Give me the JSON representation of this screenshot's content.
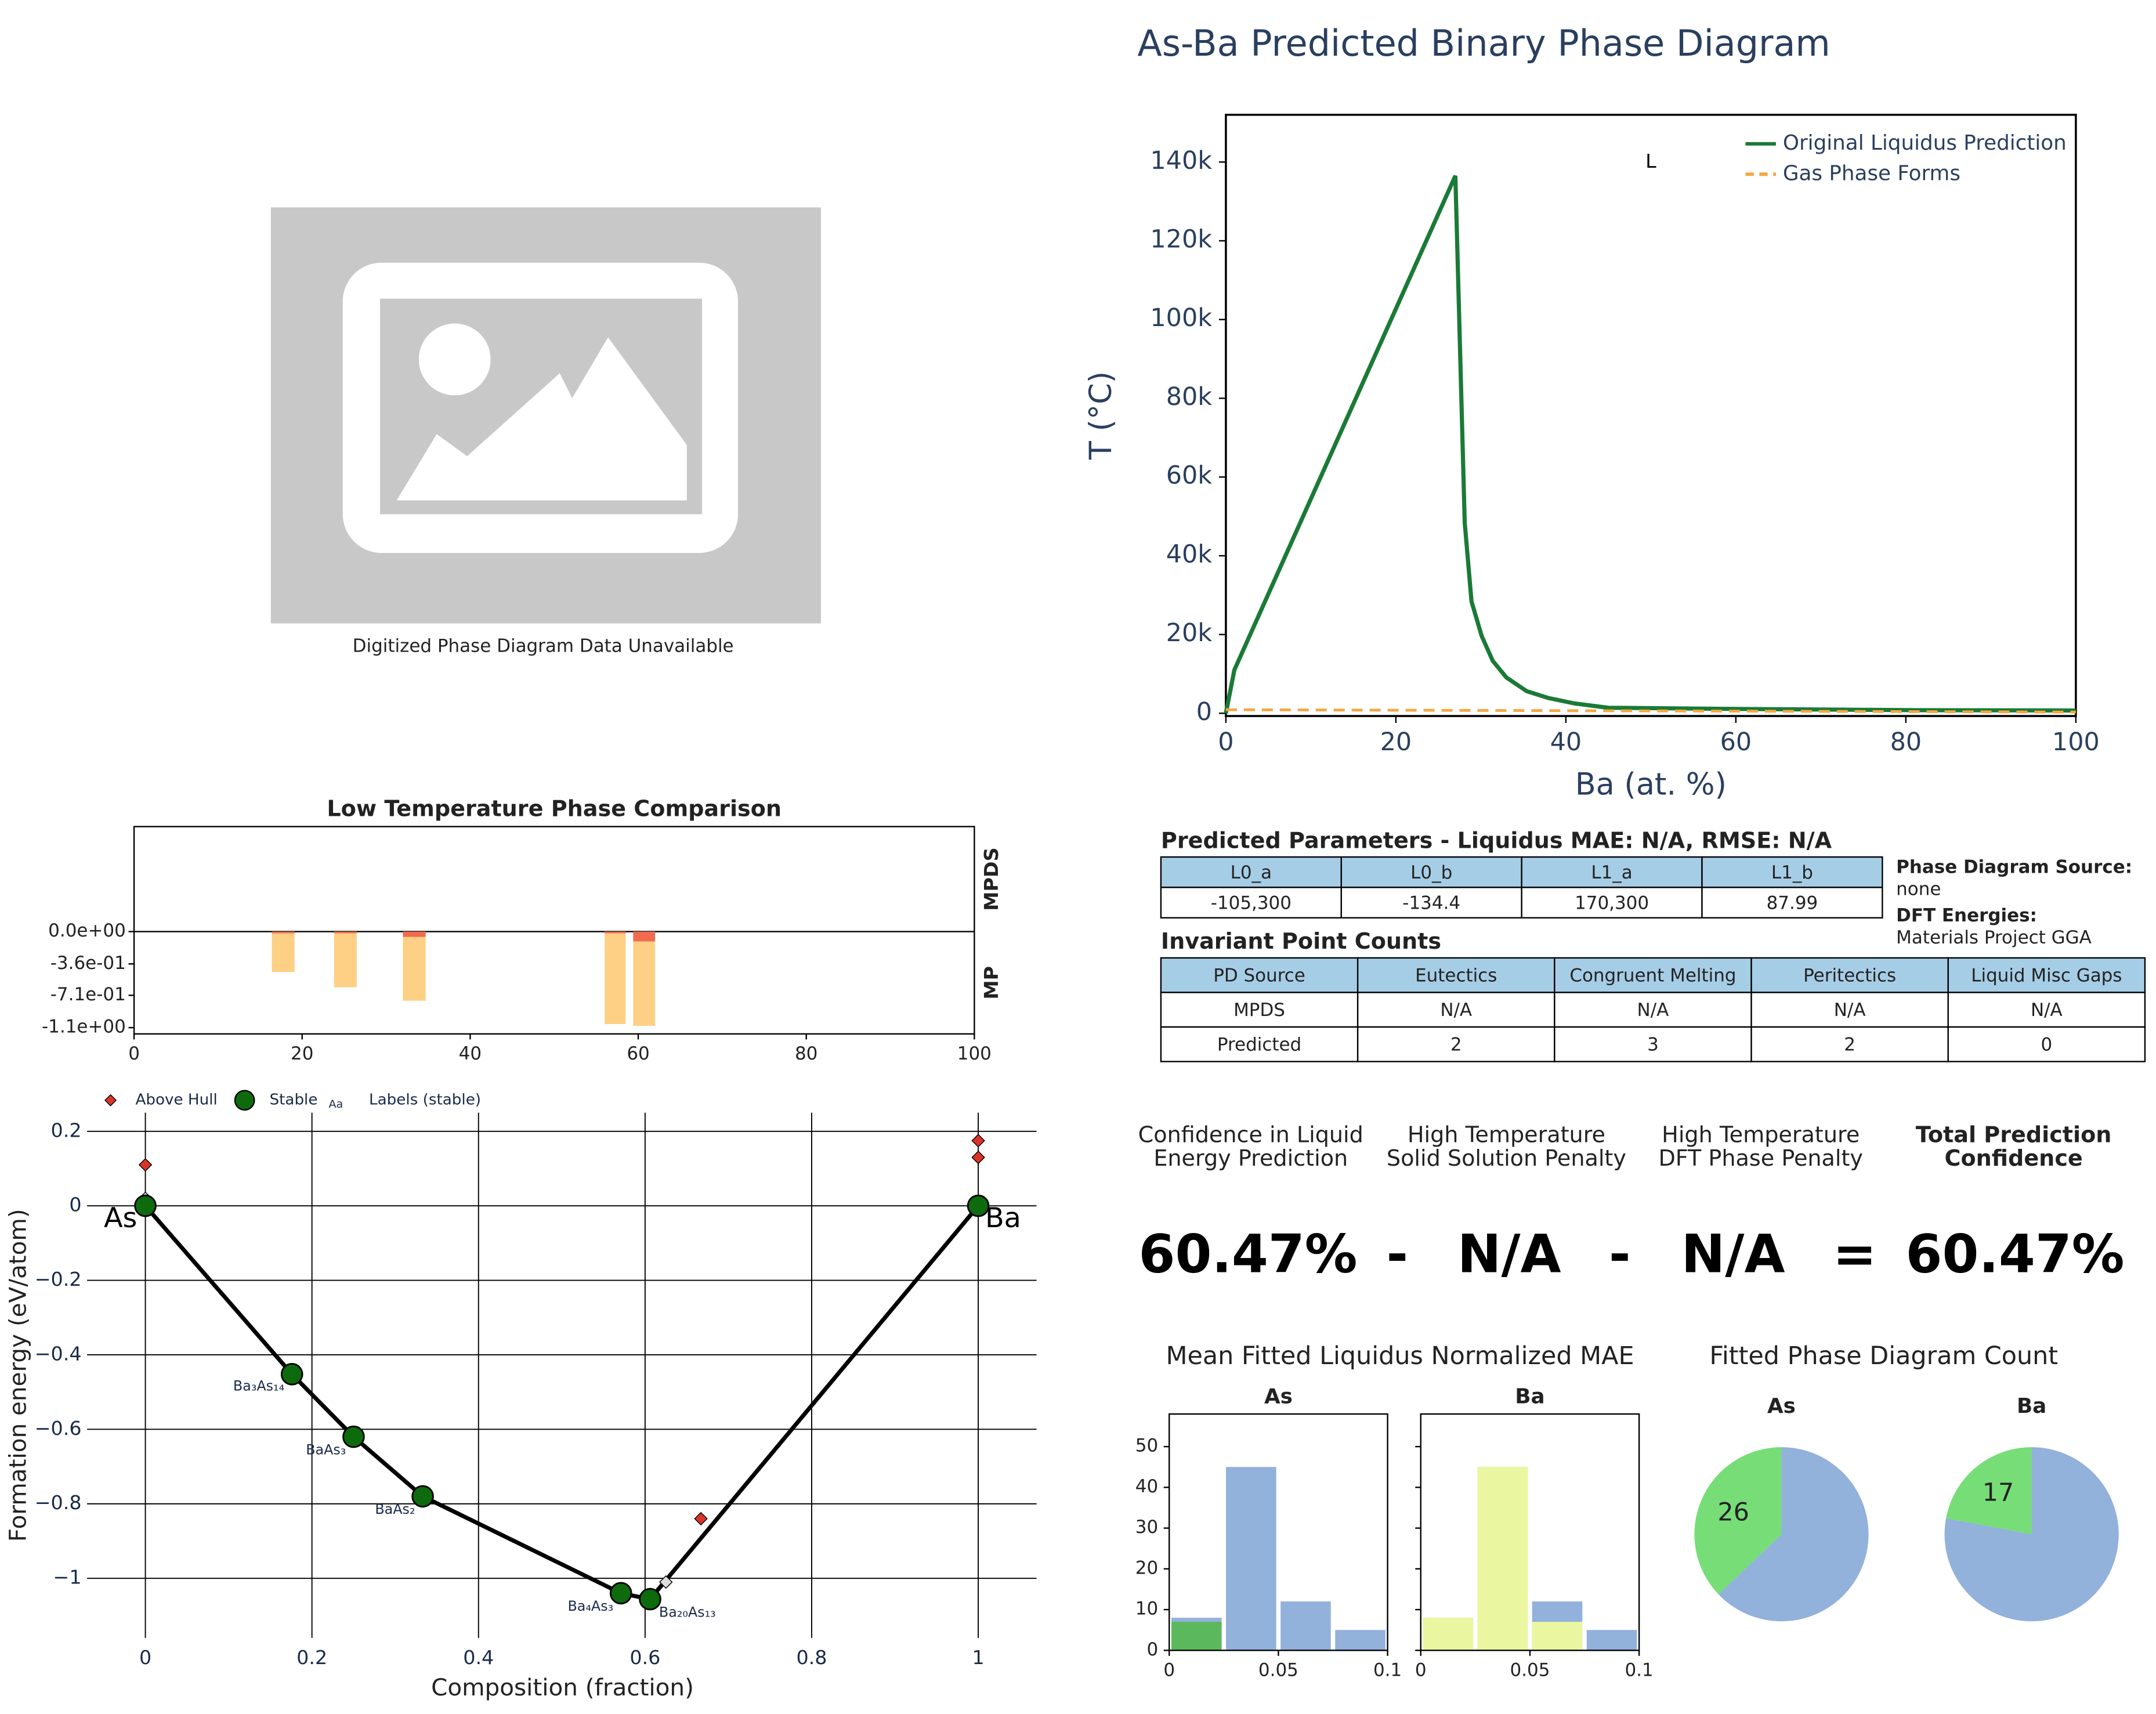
{
  "placeholder": {
    "caption": "Digitized Phase Diagram Data Unavailable"
  },
  "chart_data": [
    {
      "type": "line",
      "title": "As-Ba Predicted Binary Phase Diagram",
      "xlabel": "Ba (at. %)",
      "ylabel": "T (°C)",
      "xlim": [
        0,
        100
      ],
      "ylim": [
        -700,
        152000
      ],
      "xticks": [
        0,
        20,
        40,
        60,
        80,
        100
      ],
      "yticks": [
        0,
        {
          "value": 20000,
          "label": "20k"
        },
        {
          "value": 40000,
          "label": "40k"
        },
        {
          "value": 60000,
          "label": "60k"
        },
        {
          "value": 80000,
          "label": "80k"
        },
        {
          "value": 100000,
          "label": "100k"
        },
        {
          "value": 120000,
          "label": "120k"
        },
        {
          "value": 140000,
          "label": "140k"
        }
      ],
      "legend": "upper right",
      "annotations": [
        {
          "text": "L",
          "x": 50,
          "y": 140000
        }
      ],
      "series": [
        {
          "name": "Original Liquidus Prediction",
          "color": "#1a7a36",
          "dash": "solid",
          "x": [
            0,
            1,
            27,
            28.1,
            28.9,
            30.1,
            31.4,
            33,
            35.4,
            37.9,
            41,
            45,
            60,
            80,
            100
          ],
          "values": [
            0,
            11000,
            136500,
            48400,
            28400,
            19600,
            13300,
            9100,
            5600,
            3900,
            2500,
            1400,
            1100,
            800,
            700
          ]
        },
        {
          "name": "Gas Phase Forms",
          "color": "#f4a742",
          "dash": "dashed",
          "x": [
            0,
            100
          ],
          "values": [
            900,
            300
          ]
        }
      ]
    },
    {
      "type": "bar",
      "title": "Low Temperature Phase Comparison",
      "xlim": [
        0,
        100
      ],
      "ylim": [
        -1.14,
        1.17
      ],
      "xticks": [
        0,
        20,
        40,
        60,
        80,
        100
      ],
      "yticks": [
        {
          "value": 0,
          "label": "0.0e+00"
        },
        {
          "value": -0.36,
          "label": "-3.6e-01"
        },
        {
          "value": -0.71,
          "label": "-7.1e-01"
        },
        {
          "value": -1.07,
          "label": "-1.1e+00"
        }
      ],
      "row_labels": [
        "MPDS",
        "MP"
      ],
      "stacked": true,
      "bar_edges": [
        [
          16.4,
          19.1
        ],
        [
          23.8,
          26.5
        ],
        [
          32,
          34.7
        ],
        [
          56,
          58.5
        ],
        [
          59.4,
          62
        ]
      ],
      "series": [
        {
          "color": "#f26b4f",
          "values": [
            -0.02,
            -0.02,
            -0.06,
            -0.02,
            -0.11
          ]
        },
        {
          "color": "#fdd085",
          "values": [
            -0.43,
            -0.6,
            -0.71,
            -1.01,
            -0.94
          ]
        }
      ]
    },
    {
      "type": "scatter",
      "xlabel": "Composition (fraction)",
      "ylabel": "Formation energy (eV/atom)",
      "xlim": [
        -0.07,
        1.07
      ],
      "ylim": [
        -1.16,
        0.25
      ],
      "grid": true,
      "xticks": [
        0,
        0.2,
        0.4,
        0.6,
        0.8,
        1
      ],
      "yticks": [
        0.2,
        0,
        {
          "value": -0.2,
          "label": "−0.2"
        },
        {
          "value": -0.4,
          "label": "−0.4"
        },
        {
          "value": -0.6,
          "label": "−0.6"
        },
        {
          "value": -0.8,
          "label": "−0.8"
        },
        {
          "value": -1,
          "label": "−1"
        }
      ],
      "label_legend": {
        "icon": "Aa",
        "name": "Labels (stable)"
      },
      "series": [
        {
          "color": "#dddddd",
          "marker": "diamond",
          "x": [
            0,
            0.625,
            1
          ],
          "values": [
            0.02,
            -1.01,
            0.01
          ]
        },
        {
          "name": "Above Hull",
          "color": "#d9342b",
          "marker": "diamond",
          "x": [
            0,
            1,
            1,
            0.667
          ],
          "values": [
            0.11,
            0.175,
            0.13,
            -0.84
          ]
        },
        {
          "name": "Stable",
          "color": "#0d6b0d",
          "marker": "circle",
          "line": true,
          "x": [
            0,
            0.176,
            0.25,
            0.333,
            0.571,
            0.606,
            1
          ],
          "values": [
            0,
            -0.452,
            -0.62,
            -0.78,
            -1.04,
            -1.056,
            0
          ],
          "labels": [
            "As",
            "Ba₃As₁₄",
            "BaAs₃",
            "BaAs₂",
            "Ba₄As₃",
            "Ba₂₀As₁₃",
            "Ba"
          ]
        }
      ]
    },
    {
      "type": "histogram",
      "title": "Mean Fitted Liquidus Normalized MAE",
      "bins": [
        0,
        0.025,
        0.05,
        0.075,
        0.1
      ],
      "xlim": [
        0,
        0.1
      ],
      "ylim": [
        0,
        58
      ],
      "xticks": [
        0,
        0.05,
        0.1
      ],
      "yticks": [
        0,
        10,
        20,
        30,
        40,
        50
      ],
      "sharey": true,
      "subplots": [
        {
          "title": "As",
          "series": [
            {
              "color": "#92b1db",
              "values": [
                8,
                45,
                12,
                5
              ]
            },
            {
              "color": "#5cb85c",
              "values": [
                7,
                0,
                0,
                0
              ]
            }
          ]
        },
        {
          "title": "Ba",
          "series": [
            {
              "color": "#92b1db",
              "values": [
                8,
                45,
                12,
                5
              ]
            },
            {
              "color": "#eaf7a0",
              "values": [
                8,
                45,
                7,
                0
              ]
            }
          ]
        }
      ]
    },
    {
      "type": "pie",
      "title": "Fitted Phase Diagram Count",
      "colors": [
        "#77dd77",
        "#92b1db"
      ],
      "start": "top",
      "direction": "counterclockwise",
      "pies": [
        {
          "title": "As",
          "values": [
            26,
            44
          ],
          "value_labels": [
            "26",
            null
          ]
        },
        {
          "title": "Ba",
          "values": [
            17,
            60
          ],
          "value_labels": [
            "17",
            null
          ]
        }
      ]
    }
  ],
  "parameters": {
    "title": "Predicted Parameters - Liquidus MAE: N/A, RMSE: N/A",
    "headers": [
      "L0_a",
      "L0_b",
      "L1_a",
      "L1_b"
    ],
    "rows": [
      [
        "-105,300",
        "-134.4",
        "170,300",
        "87.99"
      ]
    ]
  },
  "source_info": [
    {
      "label": "Phase Diagram Source:",
      "value": "none"
    },
    {
      "label": "DFT Energies:",
      "value": "Materials Project GGA"
    }
  ],
  "invariants": {
    "title": "Invariant Point Counts",
    "headers": [
      "PD Source",
      "Eutectics",
      "Congruent Melting",
      "Peritectics",
      "Liquid Misc Gaps"
    ],
    "rows": [
      [
        "MPDS",
        "N/A",
        "N/A",
        "N/A",
        "N/A"
      ],
      [
        "Predicted",
        "2",
        "3",
        "2",
        "0"
      ]
    ]
  },
  "confidence": {
    "headers": [
      [
        "Confidence in Liquid",
        "Energy Prediction"
      ],
      [
        "High Temperature",
        "Solid Solution Penalty"
      ],
      [
        "High Temperature",
        "DFT Phase Penalty"
      ],
      [
        "Total Prediction",
        "Confidence"
      ]
    ],
    "terms": [
      "60.47%",
      "-",
      "N/A",
      "-",
      "N/A",
      "=",
      "60.47%"
    ]
  }
}
